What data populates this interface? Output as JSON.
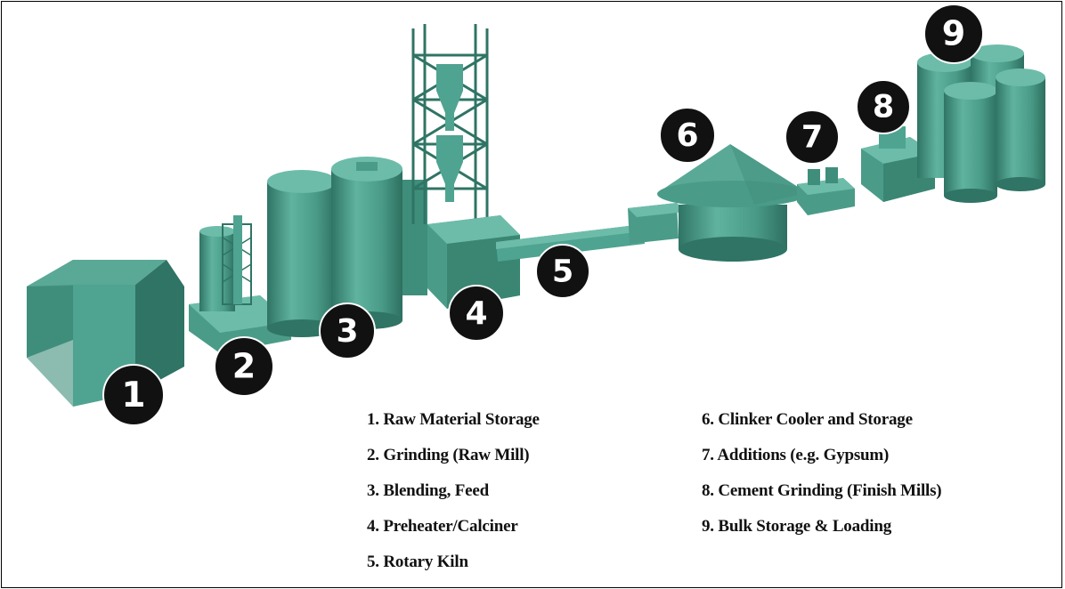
{
  "diagram": {
    "colors": {
      "equipment": "#4fa391",
      "equipment_light": "#6dbcaa",
      "equipment_dark": "#2f7465",
      "badge_fill": "#111111",
      "badge_text": "#ffffff"
    },
    "badges": [
      "1",
      "2",
      "3",
      "4",
      "5",
      "6",
      "7",
      "8",
      "9"
    ],
    "legend_left": [
      "1. Raw Material Storage",
      "2. Grinding (Raw Mill)",
      "3. Blending, Feed",
      "4. Preheater/Calciner",
      "5. Rotary Kiln"
    ],
    "legend_right": [
      "6. Clinker Cooler and Storage",
      "7. Additions (e.g. Gypsum)",
      "8. Cement Grinding (Finish Mills)",
      "9. Bulk Storage & Loading"
    ]
  }
}
